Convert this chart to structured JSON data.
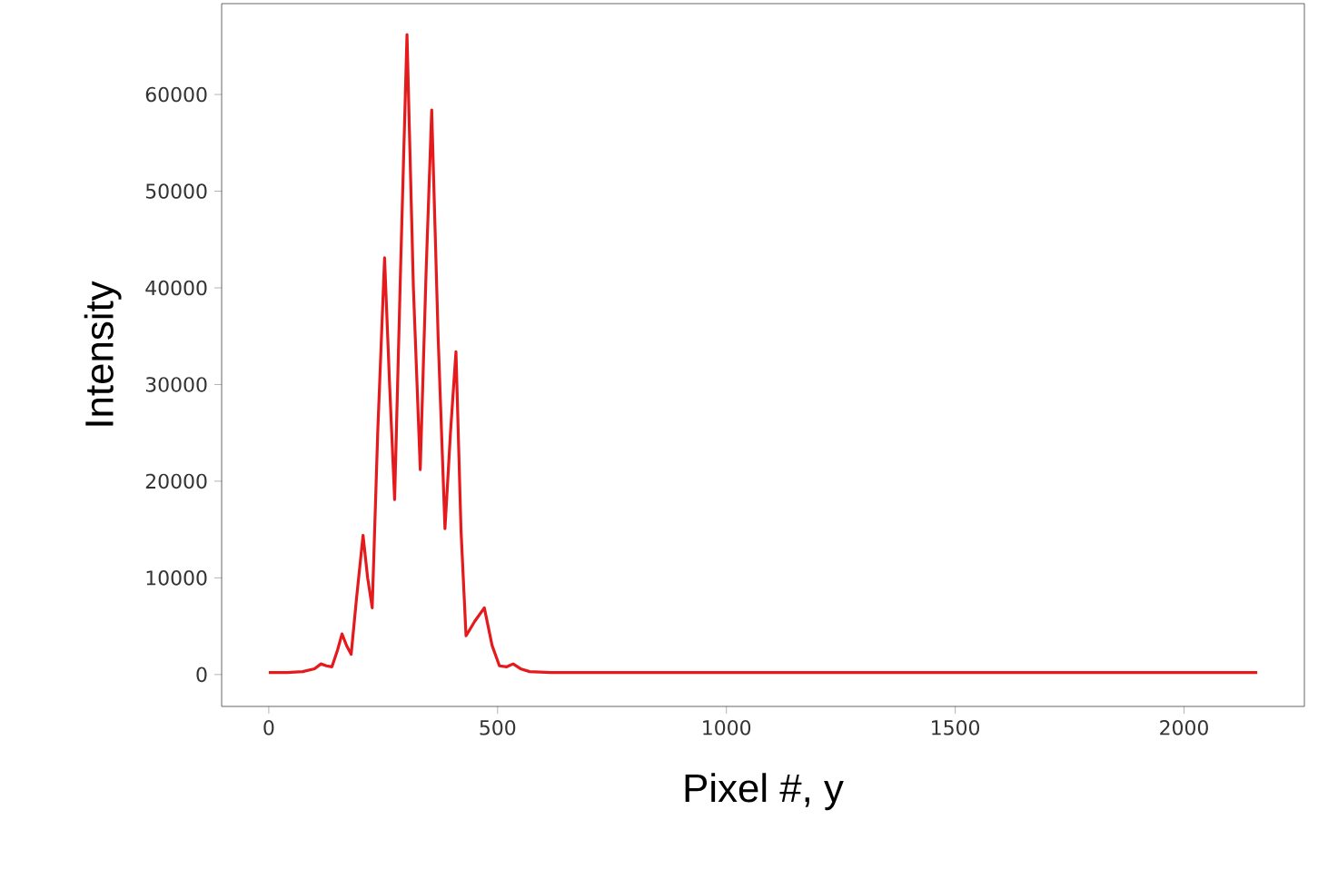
{
  "chart_data": {
    "type": "line",
    "xlabel": "Pixel #, y",
    "ylabel": "Intensity",
    "xlim": [
      -103,
      2263
    ],
    "ylim": [
      -3300,
      69400
    ],
    "xticks": [
      0,
      500,
      1000,
      1500,
      2000
    ],
    "yticks": [
      0,
      10000,
      20000,
      30000,
      40000,
      50000,
      60000
    ],
    "series": [
      {
        "color": "#e41a1c",
        "x": [
          0,
          40,
          74,
          100,
          114,
          126,
          138,
          150,
          160,
          170,
          180,
          192,
          206,
          216,
          226,
          238,
          253,
          264,
          275,
          288,
          302,
          316,
          331,
          344,
          356,
          370,
          385,
          397,
          409,
          420,
          431,
          450,
          471,
          488,
          504,
          520,
          534,
          550,
          570,
          616,
          800,
          1200,
          1600,
          2000,
          2160
        ],
        "values": [
          200,
          200,
          300,
          600,
          1100,
          900,
          800,
          2500,
          4200,
          3000,
          2100,
          8000,
          14400,
          10000,
          6900,
          25000,
          43100,
          30000,
          18100,
          42000,
          66200,
          40000,
          21200,
          42000,
          58400,
          35000,
          15100,
          25000,
          33400,
          15000,
          4000,
          5500,
          6900,
          3000,
          900,
          800,
          1100,
          600,
          300,
          200,
          200,
          200,
          200,
          200,
          200
        ]
      }
    ]
  }
}
